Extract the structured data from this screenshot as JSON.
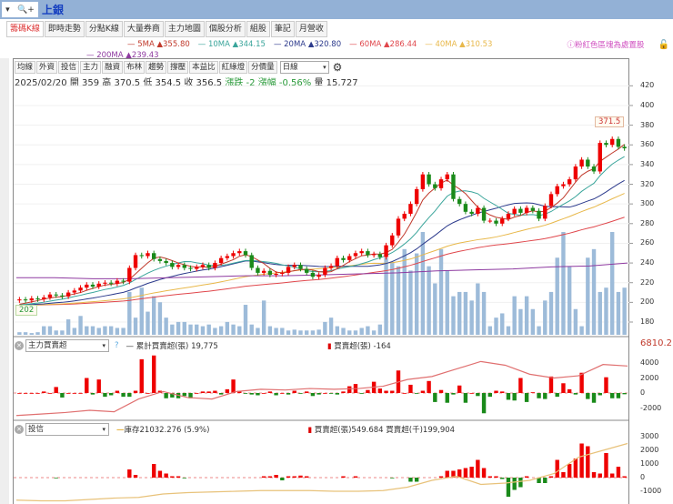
{
  "topbar": {
    "title": "上銀",
    "zoom_icon": "magnifier-plus-icon"
  },
  "tabs": [
    {
      "label": "籌碼K線",
      "active": true
    },
    {
      "label": "即時走勢"
    },
    {
      "label": "分點K線"
    },
    {
      "label": "大量券商"
    },
    {
      "label": "主力地圖"
    },
    {
      "label": "個股分析"
    },
    {
      "label": "組股"
    },
    {
      "label": "筆記"
    },
    {
      "label": "月營收"
    }
  ],
  "ma_legend": [
    {
      "label": "5MA",
      "value": "355.80",
      "color": "#c0392b"
    },
    {
      "label": "10MA",
      "value": "344.15",
      "color": "#3aa59b"
    },
    {
      "label": "20MA",
      "value": "320.80",
      "color": "#2c3a8c"
    },
    {
      "label": "60MA",
      "value": "286.44",
      "color": "#e0474c"
    },
    {
      "label": "40MA",
      "value": "310.53",
      "color": "#e8b84a"
    },
    {
      "label": "200MA",
      "value": "239.43",
      "color": "#8e3aa0"
    }
  ],
  "notice": "粉紅色區塊為處置股",
  "toolbar": {
    "buttons": [
      "均線",
      "外資",
      "投信",
      "主力",
      "融資",
      "布林",
      "趨勢",
      "撐壓",
      "本益比",
      "紅綠燈",
      "分價量"
    ],
    "period": "日線"
  },
  "info": {
    "date": "2025/02/20",
    "open_label": "開",
    "open": "359",
    "high_label": "高",
    "high": "370.5",
    "low_label": "低",
    "low": "354.5",
    "close_label": "收",
    "close": "356.5",
    "change_label": "漲跌",
    "change": "-2",
    "pct_label": "漲幅",
    "pct": "-0.56%",
    "vol_label": "量",
    "vol": "15,727"
  },
  "annotations": {
    "high": "371.5",
    "low": "202"
  },
  "chart_data": [
    {
      "type": "candlestick",
      "yticks": [
        180,
        200,
        220,
        240,
        260,
        280,
        300,
        320,
        340,
        360,
        380,
        400,
        420
      ],
      "ylim": [
        175,
        425
      ],
      "close": [
        203,
        202,
        204,
        203,
        205,
        208,
        207,
        206,
        210,
        212,
        215,
        218,
        216,
        219,
        220,
        219,
        222,
        221,
        235,
        248,
        247,
        250,
        244,
        242,
        240,
        236,
        238,
        235,
        234,
        236,
        238,
        235,
        240,
        245,
        247,
        250,
        252,
        248,
        235,
        230,
        232,
        228,
        229,
        230,
        236,
        238,
        234,
        230,
        226,
        228,
        235,
        237,
        245,
        243,
        247,
        250,
        252,
        248,
        249,
        246,
        258,
        268,
        285,
        290,
        300,
        315,
        330,
        320,
        316,
        325,
        330,
        305,
        300,
        292,
        290,
        296,
        283,
        283,
        280,
        285,
        290,
        295,
        291,
        296,
        293,
        285,
        298,
        310,
        318,
        320,
        325,
        338,
        345,
        338,
        333,
        362,
        360,
        366,
        358,
        356.5
      ],
      "volume": [
        3,
        3,
        2,
        3,
        10,
        10,
        5,
        5,
        18,
        8,
        22,
        10,
        10,
        8,
        10,
        10,
        8,
        8,
        50,
        20,
        55,
        27,
        45,
        38,
        20,
        12,
        15,
        15,
        12,
        12,
        10,
        12,
        8,
        10,
        15,
        12,
        10,
        35,
        12,
        8,
        40,
        10,
        8,
        8,
        5,
        6,
        5,
        5,
        5,
        6,
        15,
        20,
        10,
        8,
        5,
        5,
        8,
        10,
        5,
        12,
        90,
        85,
        80,
        100,
        75,
        95,
        120,
        80,
        60,
        100,
        75,
        45,
        50,
        50,
        40,
        60,
        50,
        10,
        20,
        25,
        10,
        45,
        30,
        45,
        30,
        10,
        40,
        50,
        90,
        120,
        80,
        30,
        10,
        90,
        100,
        50,
        55,
        120,
        50,
        55
      ],
      "ma200": [
        225,
        225,
        224,
        224,
        225,
        226,
        227,
        227,
        228,
        229,
        230,
        232,
        233,
        234,
        236,
        237,
        240
      ]
    },
    {
      "type": "bar+line",
      "selector": "主力買賣超",
      "line_label": "累計買賣超(張)",
      "line_value": "19,775",
      "bar_label": "買賣超(張)",
      "bar_value": "-164",
      "top_value": "6810.2",
      "yticks": [
        4000,
        2000,
        0,
        -2000
      ],
      "bars": [
        0,
        0,
        0,
        0,
        200,
        0,
        800,
        -600,
        0,
        0,
        0,
        2000,
        -200,
        1800,
        -500,
        -300,
        300,
        -500,
        -500,
        300,
        4500,
        0,
        5000,
        300,
        -700,
        -600,
        -700,
        -400,
        -700,
        0,
        200,
        200,
        300,
        -200,
        500,
        1800,
        300,
        -100,
        -200,
        -300,
        0,
        200,
        -300,
        0,
        -200,
        300,
        -100,
        200,
        -400,
        -200,
        0,
        -100,
        -200,
        200,
        900,
        1200,
        -100,
        400,
        1500,
        600,
        300,
        300,
        3000,
        0,
        1100,
        -100,
        300,
        1600,
        -1200,
        400,
        -1300,
        -200,
        1000,
        -1300,
        0,
        -400,
        -2700,
        -500,
        300,
        200,
        -900,
        -1000,
        2000,
        -1200,
        100,
        -700,
        -800,
        2200,
        -500,
        1300,
        500,
        -200,
        2700,
        -800,
        -1300,
        -300,
        2100,
        -700,
        -700,
        -164
      ],
      "line": [
        -3000,
        -2800,
        -2600,
        -2300,
        -2500,
        -800,
        200,
        -600,
        -800,
        200,
        500,
        400,
        600,
        500,
        600,
        900,
        1800,
        2200,
        3200,
        4200,
        3700,
        2500,
        2000,
        2300,
        3800,
        3600
      ]
    },
    {
      "type": "bar+line",
      "selector": "投信",
      "line_label": "庫存21032.276 (5.9%)",
      "bar_label": "買賣超(張)549.684 買賣超(千)199,904",
      "yticks": [
        3000,
        2000,
        1000,
        0,
        -1000
      ],
      "bars": [
        0,
        0,
        0,
        0,
        0,
        0,
        -50,
        0,
        0,
        0,
        0,
        0,
        0,
        0,
        0,
        0,
        0,
        0,
        600,
        200,
        0,
        0,
        1000,
        500,
        300,
        100,
        100,
        -50,
        0,
        0,
        0,
        0,
        0,
        0,
        0,
        0,
        0,
        0,
        0,
        0,
        100,
        100,
        200,
        -200,
        100,
        100,
        150,
        100,
        0,
        0,
        0,
        0,
        0,
        100,
        0,
        100,
        0,
        0,
        0,
        0,
        0,
        -50,
        0,
        0,
        -300,
        -300,
        0,
        0,
        0,
        100,
        500,
        500,
        600,
        700,
        800,
        1300,
        700,
        100,
        100,
        -100,
        -1400,
        -900,
        -700,
        100,
        0,
        -400,
        -400,
        100,
        1300,
        400,
        1000,
        1400,
        2500,
        2300,
        400,
        300,
        1800,
        300,
        800,
        100
      ],
      "line": [
        -1650,
        -1700,
        -1700,
        -1600,
        -1500,
        -1450,
        -1200,
        -1100,
        -1050,
        -1000,
        -950,
        -950,
        -950,
        -1000,
        -1000,
        -950,
        -700,
        -200,
        100,
        -500,
        -400,
        -200,
        300,
        1500,
        2000,
        2500
      ]
    }
  ]
}
